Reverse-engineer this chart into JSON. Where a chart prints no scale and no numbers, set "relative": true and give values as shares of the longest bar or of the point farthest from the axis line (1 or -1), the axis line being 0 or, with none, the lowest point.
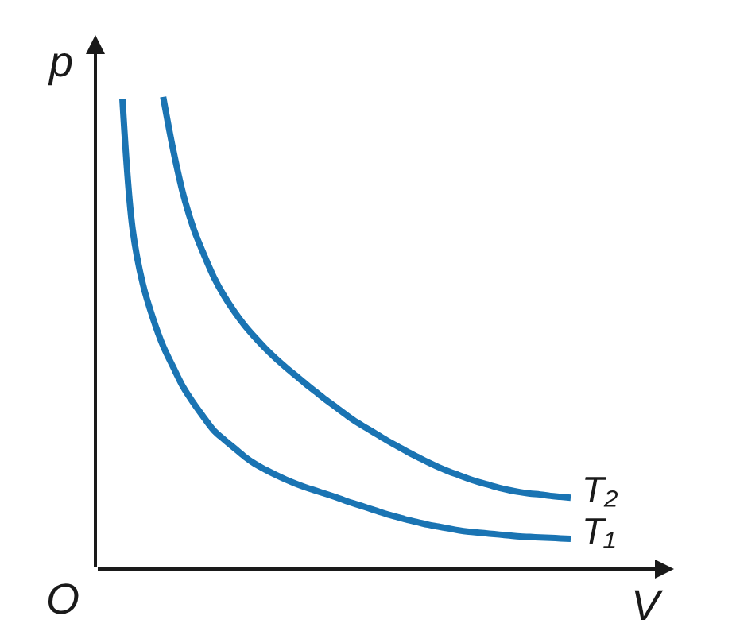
{
  "chart_data": {
    "type": "line",
    "relative": true,
    "xlabel": "V",
    "ylabel": "p",
    "annotations": [
      "O"
    ],
    "categories": [
      null,
      null,
      null,
      null,
      null,
      null,
      null,
      null,
      null,
      null,
      null,
      null,
      null,
      null,
      null,
      null,
      null,
      null,
      null,
      null,
      null,
      null,
      null,
      null,
      null,
      null,
      null,
      null,
      null,
      null,
      null,
      null,
      null,
      null,
      null,
      null,
      null,
      null,
      null,
      null,
      null,
      null,
      null,
      null,
      null
    ],
    "series": [
      {
        "name": "T₁",
        "color": "#1a74b3",
        "values": [
          0.996,
          0.72,
          0.604,
          0.531,
          0.472,
          0.427,
          0.384,
          0.351,
          0.321,
          0.293,
          0.274,
          0.256,
          0.238,
          0.223,
          0.211,
          0.2,
          0.19,
          0.181,
          0.173,
          0.166,
          0.159,
          0.152,
          0.144,
          0.137,
          0.13,
          0.123,
          0.116,
          0.11,
          0.104,
          0.099,
          0.094,
          0.09,
          0.086,
          0.082,
          0.079,
          0.077,
          0.075,
          0.073,
          0.071,
          0.069,
          0.068,
          0.067,
          0.066,
          0.065,
          0.064
        ]
      },
      {
        "name": "T₂",
        "color": "#1a74b3",
        "values": [
          null,
          null,
          null,
          null,
          1.0,
          0.886,
          0.791,
          0.72,
          0.666,
          0.617,
          0.578,
          0.545,
          0.516,
          0.491,
          0.468,
          0.447,
          0.428,
          0.41,
          0.392,
          0.375,
          0.358,
          0.342,
          0.326,
          0.311,
          0.298,
          0.285,
          0.272,
          0.26,
          0.248,
          0.237,
          0.226,
          0.216,
          0.207,
          0.199,
          0.191,
          0.184,
          0.178,
          0.172,
          0.167,
          0.163,
          0.16,
          0.158,
          0.155,
          0.153,
          0.151
        ]
      }
    ]
  }
}
